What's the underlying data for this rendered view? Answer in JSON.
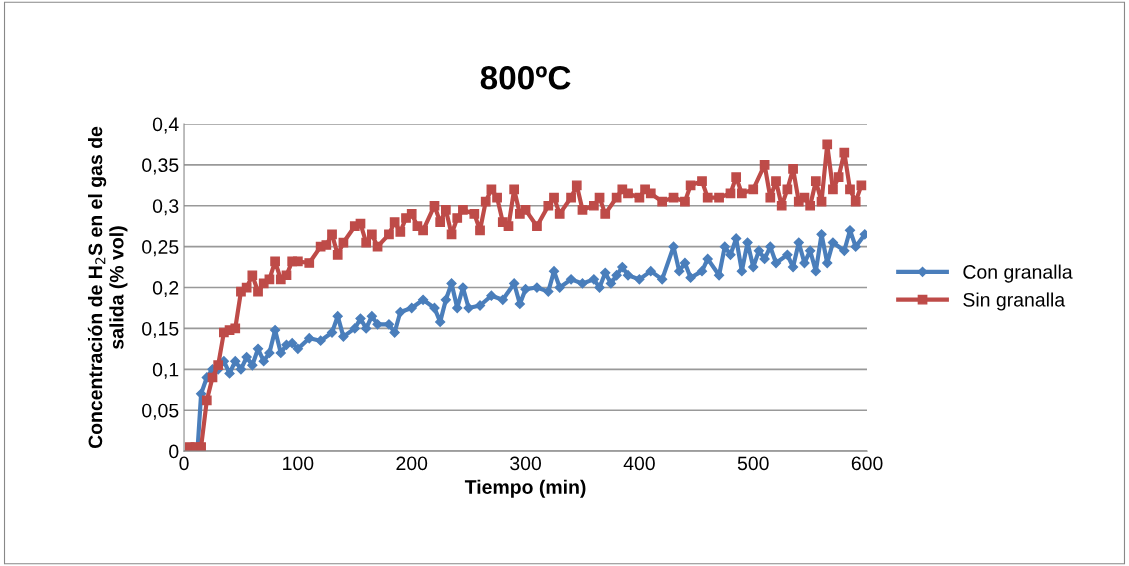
{
  "chart_data": {
    "type": "line",
    "title": "800ºC",
    "xlabel": "Tiempo (min)",
    "ylabel": "Concentración de H$_{2}$S en el gas de\nsalida (% vol)",
    "xlim": [
      0,
      600
    ],
    "xticks": [
      0,
      100,
      200,
      300,
      400,
      500,
      600
    ],
    "ylim": [
      0,
      0.4
    ],
    "yticks": [
      0,
      {
        "value": 0.05,
        "label": "0,05"
      },
      {
        "value": 0.1,
        "label": "0,1"
      },
      {
        "value": 0.15,
        "label": "0,15"
      },
      {
        "value": 0.2,
        "label": "0,2"
      },
      {
        "value": 0.25,
        "label": "0,25"
      },
      {
        "value": 0.3,
        "label": "0,3"
      },
      {
        "value": 0.35,
        "label": "0,35"
      },
      {
        "value": 0.4,
        "label": "0,4"
      }
    ],
    "grid": "y",
    "legend": "right",
    "line_style": "solid",
    "series": [
      {
        "name": "Con granalla",
        "color": "#4a7ebb",
        "marker": "diamond",
        "x": [
          5,
          12,
          15,
          20,
          25,
          30,
          35,
          40,
          45,
          50,
          55,
          60,
          65,
          70,
          75,
          80,
          85,
          90,
          95,
          100,
          110,
          120,
          130,
          135,
          140,
          150,
          155,
          160,
          165,
          170,
          180,
          185,
          190,
          200,
          210,
          220,
          225,
          230,
          235,
          240,
          245,
          250,
          260,
          270,
          280,
          290,
          295,
          300,
          310,
          320,
          325,
          330,
          340,
          350,
          360,
          365,
          370,
          375,
          380,
          385,
          390,
          400,
          410,
          420,
          430,
          435,
          440,
          445,
          455,
          460,
          470,
          475,
          480,
          485,
          490,
          495,
          500,
          505,
          510,
          515,
          520,
          530,
          535,
          540,
          545,
          550,
          555,
          560,
          565,
          570,
          580,
          585,
          590,
          598
        ],
        "values": [
          0,
          0.005,
          0.07,
          0.09,
          0.1,
          0.1,
          0.11,
          0.095,
          0.11,
          0.1,
          0.115,
          0.105,
          0.125,
          0.11,
          0.12,
          0.148,
          0.12,
          0.13,
          0.132,
          0.125,
          0.138,
          0.135,
          0.145,
          0.165,
          0.14,
          0.15,
          0.162,
          0.15,
          0.165,
          0.155,
          0.155,
          0.145,
          0.17,
          0.175,
          0.185,
          0.175,
          0.158,
          0.185,
          0.205,
          0.175,
          0.2,
          0.175,
          0.178,
          0.19,
          0.185,
          0.205,
          0.18,
          0.198,
          0.2,
          0.195,
          0.22,
          0.2,
          0.21,
          0.205,
          0.21,
          0.2,
          0.218,
          0.205,
          0.215,
          0.225,
          0.215,
          0.21,
          0.22,
          0.21,
          0.25,
          0.22,
          0.23,
          0.212,
          0.22,
          0.235,
          0.215,
          0.25,
          0.24,
          0.26,
          0.22,
          0.255,
          0.225,
          0.245,
          0.235,
          0.25,
          0.23,
          0.24,
          0.225,
          0.255,
          0.23,
          0.245,
          0.22,
          0.265,
          0.23,
          0.255,
          0.245,
          0.27,
          0.25,
          0.265
        ]
      },
      {
        "name": "Sin granalla",
        "color": "#be4b48",
        "marker": "square",
        "x": [
          5,
          10,
          15,
          20,
          25,
          30,
          35,
          40,
          45,
          50,
          55,
          60,
          65,
          70,
          75,
          80,
          85,
          90,
          95,
          100,
          110,
          120,
          125,
          130,
          135,
          140,
          150,
          155,
          160,
          165,
          170,
          180,
          185,
          190,
          195,
          200,
          205,
          210,
          220,
          225,
          230,
          235,
          240,
          245,
          255,
          260,
          265,
          270,
          275,
          280,
          285,
          290,
          295,
          300,
          310,
          320,
          325,
          330,
          340,
          345,
          350,
          360,
          365,
          370,
          380,
          385,
          390,
          400,
          405,
          410,
          420,
          430,
          440,
          445,
          455,
          460,
          470,
          480,
          485,
          490,
          500,
          510,
          515,
          520,
          525,
          530,
          535,
          540,
          545,
          550,
          555,
          560,
          565,
          570,
          575,
          580,
          585,
          590,
          595
        ],
        "values": [
          0.005,
          0.005,
          0.005,
          0.062,
          0.09,
          0.105,
          0.145,
          0.148,
          0.15,
          0.195,
          0.2,
          0.215,
          0.195,
          0.205,
          0.21,
          0.232,
          0.21,
          0.215,
          0.232,
          0.232,
          0.23,
          0.25,
          0.252,
          0.265,
          0.24,
          0.255,
          0.275,
          0.278,
          0.255,
          0.265,
          0.25,
          0.265,
          0.28,
          0.268,
          0.285,
          0.29,
          0.275,
          0.27,
          0.3,
          0.28,
          0.295,
          0.265,
          0.285,
          0.295,
          0.29,
          0.27,
          0.305,
          0.32,
          0.31,
          0.28,
          0.275,
          0.32,
          0.29,
          0.295,
          0.275,
          0.3,
          0.31,
          0.29,
          0.31,
          0.325,
          0.295,
          0.3,
          0.31,
          0.29,
          0.31,
          0.32,
          0.315,
          0.31,
          0.32,
          0.315,
          0.305,
          0.31,
          0.305,
          0.325,
          0.33,
          0.31,
          0.31,
          0.315,
          0.335,
          0.315,
          0.32,
          0.35,
          0.31,
          0.33,
          0.3,
          0.32,
          0.345,
          0.305,
          0.31,
          0.3,
          0.33,
          0.305,
          0.375,
          0.32,
          0.335,
          0.365,
          0.32,
          0.305,
          0.325
        ]
      }
    ]
  }
}
